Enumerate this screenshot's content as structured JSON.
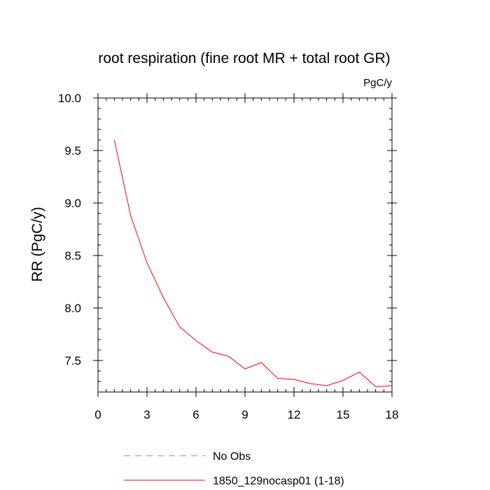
{
  "chart_data": {
    "type": "line",
    "title": "root respiration (fine root MR + total root GR)",
    "units_label": "PgC/y",
    "xlabel": "",
    "ylabel": "RR  (PgC/y)",
    "xlim": [
      0,
      18
    ],
    "ylim": [
      7.2,
      10.0
    ],
    "x_ticks": [
      0,
      3,
      6,
      9,
      12,
      15,
      18
    ],
    "x_tick_labels": [
      "0",
      "3",
      "6",
      "9",
      "12",
      "15",
      "18"
    ],
    "y_ticks": [
      7.5,
      8.0,
      8.5,
      9.0,
      9.5,
      10.0
    ],
    "y_tick_labels": [
      "7.5",
      "8.0",
      "8.5",
      "9.0",
      "9.5",
      "10.0"
    ],
    "grid": false,
    "series": [
      {
        "name": "1850_129nocasp01 (1-18)",
        "color": "#ff0000",
        "style": "solid",
        "x": [
          1,
          2,
          3,
          4,
          5,
          6,
          7,
          8,
          9,
          10,
          11,
          12,
          13,
          14,
          15,
          16,
          17,
          18
        ],
        "values": [
          9.6,
          8.88,
          8.43,
          8.1,
          7.82,
          7.69,
          7.58,
          7.54,
          7.42,
          7.48,
          7.33,
          7.32,
          7.28,
          7.26,
          7.31,
          7.39,
          7.25,
          7.26
        ]
      }
    ],
    "legend": {
      "placement": "bottom",
      "entries": [
        {
          "label": "No Obs",
          "color": "#8080ff",
          "style": "dashed"
        },
        {
          "label": "1850_129nocasp01 (1-18)",
          "color": "#ff0000",
          "style": "solid"
        }
      ]
    }
  }
}
